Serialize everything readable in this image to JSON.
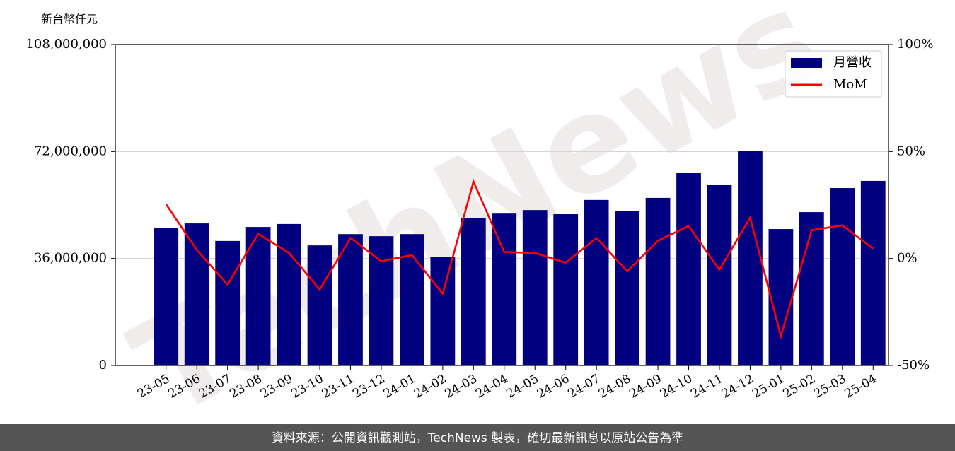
{
  "chart_data": {
    "type": "bar",
    "ylabel": "新台幣仟元",
    "watermark": "TechNews",
    "footer": "資料來源：公開資訊觀測站，TechNews 製表，確切最新訊息以原站公告為準",
    "categories": [
      "23-05",
      "23-06",
      "23-07",
      "23-08",
      "23-09",
      "23-10",
      "23-11",
      "23-12",
      "24-01",
      "24-02",
      "24-03",
      "24-04",
      "24-05",
      "24-06",
      "24-07",
      "24-08",
      "24-09",
      "24-10",
      "24-11",
      "24-12",
      "25-01",
      "25-02",
      "25-03",
      "25-04"
    ],
    "series": [
      {
        "name": "月營收",
        "color": "#000080",
        "type": "bar",
        "values": [
          46150000,
          47800000,
          41900000,
          46600000,
          47600000,
          40400000,
          44200000,
          43500000,
          44200000,
          36600000,
          49700000,
          51100000,
          52300000,
          50900000,
          55700000,
          52100000,
          56400000,
          64700000,
          60900000,
          72300000,
          45900000,
          51600000,
          59700000,
          62100000
        ]
      },
      {
        "name": "MoM",
        "color": "#ff0000",
        "type": "line",
        "axis": "y2",
        "values": [
          25.4,
          4,
          -12.2,
          11.5,
          2.6,
          -14.5,
          9.6,
          -1.3,
          1.6,
          -16.5,
          36,
          3,
          2.6,
          -2,
          9.6,
          -6,
          8.3,
          15.2,
          -5.3,
          19.1,
          -36.3,
          13.2,
          15.5,
          4.6
        ]
      }
    ],
    "ylim": [
      0,
      108000000
    ],
    "yticks": [
      {
        "value": 0,
        "label": "0"
      },
      {
        "value": 36000000,
        "label": "36,000,000"
      },
      {
        "value": 72000000,
        "label": "72,000,000"
      },
      {
        "value": 108000000,
        "label": "108,000,000"
      }
    ],
    "y2lim": [
      -50,
      100
    ],
    "y2ticks": [
      {
        "value": -50,
        "label": "-50%"
      },
      {
        "value": 0,
        "label": "0%"
      },
      {
        "value": 50,
        "label": "50%"
      },
      {
        "value": 100,
        "label": "100%"
      }
    ],
    "grid": true,
    "legend": "upper right"
  }
}
